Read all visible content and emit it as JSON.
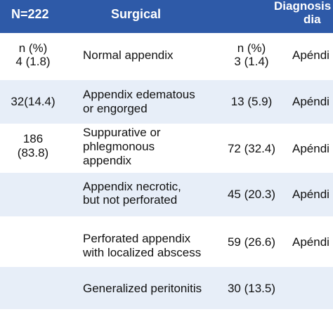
{
  "header": {
    "n_label": "N=222",
    "surgical": "Surgical",
    "diagnosis_line1": "Diagnosis",
    "diagnosis_line2": "dia"
  },
  "rows": [
    {
      "count": [
        "n (%)",
        "4 (1.8)"
      ],
      "surgical": [
        "Normal appendix"
      ],
      "n2": [
        "n (%)",
        "3 (1.4)"
      ],
      "diag": "Apéndi"
    },
    {
      "count": [
        "32(14.4)"
      ],
      "surgical": [
        "Appendix edematous",
        "or engorged"
      ],
      "n2": [
        "13 (5.9)"
      ],
      "diag": "Apéndi"
    },
    {
      "count": [
        "186",
        "(83.8)"
      ],
      "surgical": [
        "Suppurative or",
        "phlegmonous",
        "appendix"
      ],
      "n2": [
        "72 (32.4)"
      ],
      "diag": "Apéndi"
    },
    {
      "count": [],
      "surgical": [
        "Appendix necrotic,",
        "but not perforated"
      ],
      "n2": [
        "45 (20.3)"
      ],
      "diag": "Apéndi"
    },
    {
      "count": [],
      "surgical": [
        "Perforated appendix",
        "with localized abscess"
      ],
      "n2": [
        "59 (26.6)"
      ],
      "diag": "Apéndi"
    },
    {
      "count": [],
      "surgical": [
        "Generalized peritonitis"
      ],
      "n2": [
        "30 (13.5)"
      ],
      "diag": ""
    }
  ]
}
